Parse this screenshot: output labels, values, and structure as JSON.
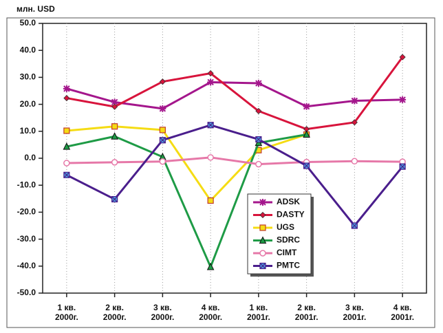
{
  "chart_data": {
    "type": "line",
    "y_label": "млн. USD",
    "categories": [
      "1 кв. 2000г.",
      "2 кв. 2000г.",
      "3 кв. 2000г.",
      "4 кв. 2000г.",
      "1 кв. 2001г.",
      "2 кв. 2001г.",
      "3 кв. 2001г.",
      "4 кв. 2001г."
    ],
    "series": [
      {
        "name": "ADSK",
        "color": "#a4168c",
        "marker": "asterisk",
        "values": [
          25.8,
          20.8,
          18.4,
          28.2,
          27.8,
          19.2,
          21.3,
          21.7
        ]
      },
      {
        "name": "DASTY",
        "color": "#d8143c",
        "marker": "diamond",
        "values": [
          22.3,
          19.1,
          28.4,
          31.5,
          17.5,
          10.8,
          13.3,
          37.5
        ]
      },
      {
        "name": "UGS",
        "color": "#f5dc14",
        "marker": "square",
        "values": [
          10.2,
          11.8,
          10.5,
          -15.7,
          3.0,
          8.8,
          null,
          null
        ]
      },
      {
        "name": "SDRC",
        "color": "#1e9b46",
        "marker": "triangle",
        "values": [
          4.3,
          8.1,
          0.5,
          -40.3,
          5.7,
          8.8,
          null,
          null
        ]
      },
      {
        "name": "CIMT",
        "color": "#e678a8",
        "marker": "circle",
        "values": [
          -1.8,
          -1.5,
          -1.2,
          0.3,
          -2.2,
          -1.4,
          -1.1,
          -1.3
        ]
      },
      {
        "name": "PMTC",
        "color": "#4a1e8c",
        "marker": "xsquare",
        "values": [
          -6.2,
          -15.2,
          6.7,
          12.3,
          7.0,
          -2.8,
          -25.0,
          -3.1
        ]
      }
    ],
    "ylim": [
      -50,
      50
    ],
    "yticks": [
      {
        "value": -50,
        "label": "-50.0"
      },
      {
        "value": -40,
        "label": "-40.0"
      },
      {
        "value": -30,
        "label": "-30.0"
      },
      {
        "value": -20,
        "label": "-20.0"
      },
      {
        "value": -10,
        "label": "-10.0"
      },
      {
        "value": 0,
        "label": "0.0"
      },
      {
        "value": 10,
        "label": "10.0"
      },
      {
        "value": 20,
        "label": "20.0"
      },
      {
        "value": 30,
        "label": "30.0"
      },
      {
        "value": 40,
        "label": "40.0"
      },
      {
        "value": 50,
        "label": "50.0"
      }
    ],
    "legend": "center"
  }
}
